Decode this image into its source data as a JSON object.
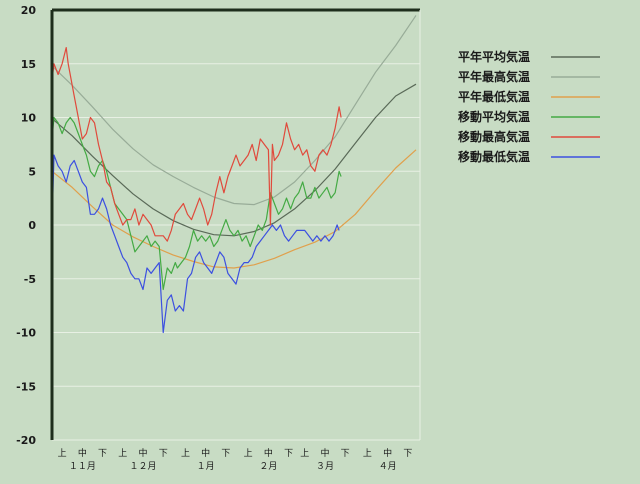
{
  "chart_data": {
    "type": "line",
    "ylim": [
      -20,
      20
    ],
    "yticks": [
      -20,
      -15,
      -10,
      -5,
      0,
      5,
      10,
      15,
      20
    ],
    "grid": true,
    "legend_position": "right",
    "x_range_days": [
      0,
      182
    ],
    "period_labels": [
      {
        "day": 5,
        "label": "上"
      },
      {
        "day": 15,
        "label": "中"
      },
      {
        "day": 25,
        "label": "下"
      },
      {
        "day": 35,
        "label": "上"
      },
      {
        "day": 45,
        "label": "中"
      },
      {
        "day": 55,
        "label": "下"
      },
      {
        "day": 66,
        "label": "上"
      },
      {
        "day": 76,
        "label": "中"
      },
      {
        "day": 86,
        "label": "下"
      },
      {
        "day": 97,
        "label": "上"
      },
      {
        "day": 107,
        "label": "中"
      },
      {
        "day": 117,
        "label": "下"
      },
      {
        "day": 125,
        "label": "上"
      },
      {
        "day": 135,
        "label": "中"
      },
      {
        "day": 145,
        "label": "下"
      },
      {
        "day": 156,
        "label": "上"
      },
      {
        "day": 166,
        "label": "中"
      },
      {
        "day": 176,
        "label": "下"
      }
    ],
    "month_labels": [
      {
        "day": 15,
        "label": "１１月"
      },
      {
        "day": 45,
        "label": "１２月"
      },
      {
        "day": 76,
        "label": "１月"
      },
      {
        "day": 107,
        "label": "２月"
      },
      {
        "day": 135,
        "label": "３月"
      },
      {
        "day": 166,
        "label": "４月"
      }
    ],
    "series": [
      {
        "name": "平年平均気温",
        "color": "#5a6a58",
        "x": [
          0,
          10,
          20,
          30,
          40,
          50,
          60,
          70,
          80,
          90,
          100,
          110,
          120,
          130,
          140,
          150,
          160,
          170,
          180
        ],
        "y": [
          9.9,
          8.3,
          6.4,
          4.6,
          2.9,
          1.5,
          0.4,
          -0.4,
          -0.9,
          -1.0,
          -0.6,
          0.2,
          1.5,
          3.2,
          5.2,
          7.6,
          10.0,
          12.0,
          13.1
        ]
      },
      {
        "name": "平年最高気温",
        "color": "#98ac98",
        "x": [
          0,
          10,
          20,
          30,
          40,
          50,
          60,
          70,
          80,
          90,
          100,
          110,
          120,
          130,
          140,
          150,
          160,
          170,
          180
        ],
        "y": [
          14.8,
          13.0,
          11.0,
          8.9,
          7.1,
          5.6,
          4.5,
          3.5,
          2.6,
          2.0,
          1.9,
          2.6,
          4.0,
          6.0,
          8.2,
          11.2,
          14.2,
          16.7,
          19.5
        ]
      },
      {
        "name": "平年最低気温",
        "color": "#e0a04c",
        "x": [
          0,
          10,
          20,
          30,
          40,
          50,
          60,
          70,
          80,
          90,
          100,
          110,
          120,
          130,
          140,
          150,
          160,
          170,
          180
        ],
        "y": [
          5.0,
          3.5,
          1.7,
          0.0,
          -1.1,
          -2.0,
          -2.8,
          -3.4,
          -3.9,
          -4.0,
          -3.7,
          -3.1,
          -2.3,
          -1.6,
          -0.6,
          1.0,
          3.2,
          5.3,
          7.0
        ]
      },
      {
        "name": "移動平均気温",
        "color": "#44aa44",
        "x": [
          0,
          1,
          3,
          5,
          7,
          9,
          11,
          13,
          15,
          17,
          19,
          21,
          23,
          25,
          27,
          29,
          31,
          33,
          35,
          37,
          39,
          41,
          43,
          45,
          47,
          49,
          51,
          53,
          55,
          57,
          59,
          61,
          62,
          64,
          66,
          68,
          70,
          72,
          74,
          76,
          78,
          80,
          82,
          84,
          86,
          88,
          90,
          92,
          94,
          96,
          98,
          100,
          102,
          104,
          106,
          108,
          110,
          112,
          114,
          116,
          118,
          120,
          122,
          124,
          126,
          128,
          130,
          132,
          134,
          136,
          138,
          140,
          142,
          143
        ],
        "y": [
          8.0,
          10.0,
          9.5,
          8.5,
          9.5,
          10.0,
          9.5,
          8.5,
          7.5,
          6.5,
          5.0,
          4.5,
          5.5,
          6.0,
          5.0,
          3.5,
          2.0,
          1.5,
          1.0,
          0.5,
          -1.0,
          -2.5,
          -2.0,
          -1.5,
          -1.0,
          -2.0,
          -1.5,
          -2.0,
          -6.0,
          -4.0,
          -4.5,
          -3.5,
          -4.0,
          -3.5,
          -3.0,
          -2.0,
          -0.5,
          -1.5,
          -1.0,
          -1.5,
          -1.0,
          -2.0,
          -1.5,
          -0.5,
          0.5,
          -0.5,
          -1.0,
          -0.5,
          -1.5,
          -1.0,
          -2.0,
          -1.0,
          0.0,
          -0.5,
          0.5,
          3.0,
          2.0,
          1.0,
          1.5,
          2.5,
          1.5,
          2.5,
          3.0,
          4.0,
          2.5,
          2.5,
          3.5,
          2.5,
          3.0,
          3.5,
          2.5,
          3.0,
          5.0,
          4.5
        ]
      },
      {
        "name": "移動最高気温",
        "color": "#e04a3c",
        "x": [
          0,
          1,
          3,
          5,
          7,
          8,
          9,
          11,
          13,
          15,
          17,
          19,
          21,
          23,
          25,
          27,
          29,
          31,
          33,
          35,
          37,
          39,
          41,
          43,
          45,
          47,
          49,
          51,
          53,
          55,
          57,
          59,
          61,
          63,
          65,
          67,
          69,
          71,
          73,
          75,
          77,
          79,
          81,
          83,
          85,
          87,
          89,
          91,
          93,
          95,
          97,
          99,
          101,
          103,
          105,
          107,
          108,
          109,
          110,
          112,
          114,
          116,
          118,
          120,
          122,
          124,
          126,
          128,
          130,
          132,
          134,
          136,
          138,
          140,
          142,
          143
        ],
        "y": [
          13.5,
          15.0,
          14.0,
          15.0,
          16.5,
          15.0,
          14.0,
          12.0,
          10.0,
          8.0,
          8.5,
          10.0,
          9.5,
          7.5,
          6.0,
          4.0,
          3.5,
          2.0,
          1.0,
          0.0,
          0.5,
          0.5,
          1.5,
          0.0,
          1.0,
          0.5,
          0.0,
          -1.0,
          -1.0,
          -1.0,
          -1.5,
          -0.5,
          1.0,
          1.5,
          2.0,
          1.0,
          0.5,
          1.5,
          2.5,
          1.5,
          0.0,
          1.0,
          3.0,
          4.5,
          3.0,
          4.5,
          5.5,
          6.5,
          5.5,
          6.0,
          6.5,
          7.5,
          6.0,
          8.0,
          7.5,
          7.0,
          0.0,
          7.5,
          6.0,
          6.5,
          7.5,
          9.5,
          8.0,
          7.0,
          7.5,
          6.5,
          7.0,
          5.5,
          5.0,
          6.5,
          7.0,
          6.5,
          7.5,
          9.0,
          11.0,
          10.0
        ]
      },
      {
        "name": "移動最低気温",
        "color": "#3c50e0",
        "x": [
          0,
          1,
          3,
          5,
          7,
          9,
          11,
          13,
          15,
          17,
          19,
          21,
          23,
          25,
          27,
          29,
          31,
          33,
          35,
          37,
          39,
          41,
          43,
          45,
          47,
          49,
          51,
          53,
          55,
          57,
          59,
          61,
          63,
          65,
          67,
          69,
          71,
          73,
          75,
          77,
          79,
          81,
          83,
          85,
          87,
          89,
          91,
          93,
          95,
          97,
          99,
          101,
          103,
          105,
          107,
          109,
          111,
          113,
          115,
          117,
          119,
          121,
          123,
          125,
          127,
          129,
          131,
          133,
          135,
          137,
          139,
          141,
          142
        ],
        "y": [
          0.0,
          6.5,
          5.5,
          5.0,
          4.0,
          5.5,
          6.0,
          5.0,
          4.0,
          3.5,
          1.0,
          1.0,
          1.5,
          2.5,
          1.5,
          0.0,
          -1.0,
          -2.0,
          -3.0,
          -3.5,
          -4.5,
          -5.0,
          -5.0,
          -6.0,
          -4.0,
          -4.5,
          -4.0,
          -3.5,
          -10.0,
          -7.0,
          -6.5,
          -8.0,
          -7.5,
          -8.0,
          -5.0,
          -4.5,
          -3.0,
          -2.5,
          -3.5,
          -4.0,
          -4.5,
          -3.5,
          -2.5,
          -3.0,
          -4.5,
          -5.0,
          -5.5,
          -4.0,
          -3.5,
          -3.5,
          -3.0,
          -2.0,
          -1.5,
          -1.0,
          -0.5,
          0.0,
          -0.5,
          0.0,
          -1.0,
          -1.5,
          -1.0,
          -0.5,
          -0.5,
          -0.5,
          -1.0,
          -1.5,
          -1.0,
          -1.5,
          -1.0,
          -1.5,
          -1.0,
          0.0,
          -0.5
        ]
      }
    ]
  }
}
